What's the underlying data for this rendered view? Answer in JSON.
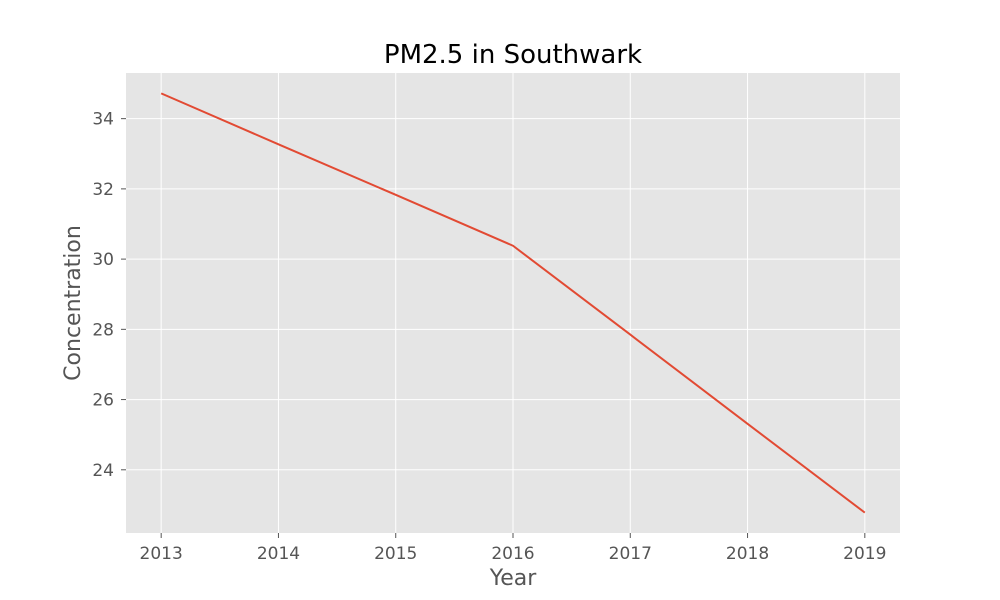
{
  "chart_data": {
    "type": "line",
    "title": "PM2.5 in Southwark",
    "xlabel": "Year",
    "ylabel": "Concentration",
    "x": [
      2013,
      2014,
      2015,
      2016,
      2017,
      2018,
      2019
    ],
    "series": [
      {
        "values": [
          34.72,
          33.27,
          31.83,
          30.38,
          27.85,
          25.31,
          22.78
        ],
        "color": "#e24a33"
      }
    ],
    "xlim": [
      2012.7,
      2019.3
    ],
    "ylim": [
      22.2,
      35.3
    ],
    "xticks": [
      2013,
      2014,
      2015,
      2016,
      2017,
      2018,
      2019
    ],
    "yticks": [
      24,
      26,
      28,
      30,
      32,
      34
    ],
    "grid": true,
    "legend": "none",
    "background": "#e5e5e5"
  }
}
